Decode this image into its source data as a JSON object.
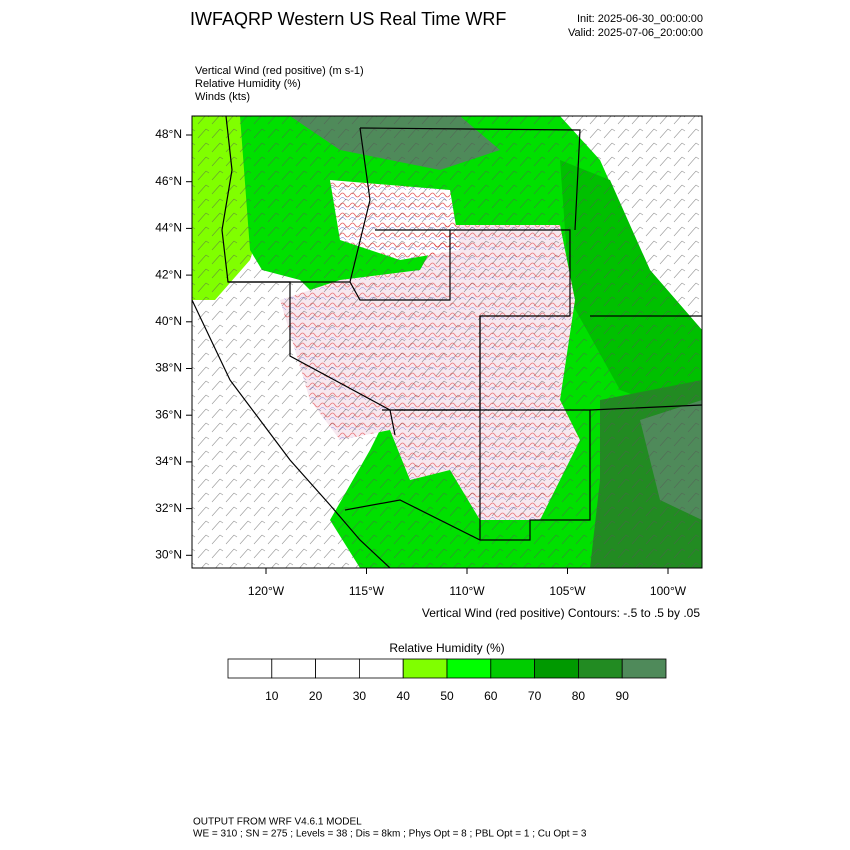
{
  "header": {
    "title": "IWFAQRP Western US Real Time WRF",
    "init": "Init: 2025-06-30_00:00:00",
    "valid": "Valid: 2025-07-06_20:00:00"
  },
  "fields": [
    "Vertical Wind (red positive)   (m s-1)",
    "Relative Humidity   (%)",
    "Winds   (kts)"
  ],
  "map": {
    "lat_labels": [
      "48°N",
      "46°N",
      "44°N",
      "42°N",
      "40°N",
      "38°N",
      "36°N",
      "34°N",
      "32°N",
      "30°N"
    ],
    "lon_labels": [
      "120°W",
      "115°W",
      "110°W",
      "105°W",
      "100°W"
    ],
    "contour_note": "Vertical Wind (red positive) Contours: -.5 to .5 by .05"
  },
  "colorbar": {
    "title": "Relative Humidity  (%)",
    "colors": [
      "#ffffff",
      "#ffffff",
      "#ffffff",
      "#ffffff",
      "#80ff00",
      "#00ff00",
      "#00cc00",
      "#009900",
      "#228b22",
      "#4f8a5a"
    ],
    "labels": [
      "10",
      "20",
      "30",
      "40",
      "50",
      "60",
      "70",
      "80",
      "90"
    ]
  },
  "footer": {
    "line1": "OUTPUT FROM WRF V4.6.1 MODEL",
    "line2": "WE = 310 ; SN = 275 ; Levels = 38 ; Dis = 8km ; Phys Opt = 8 ; PBL Opt = 1 ; Cu Opt = 3"
  }
}
